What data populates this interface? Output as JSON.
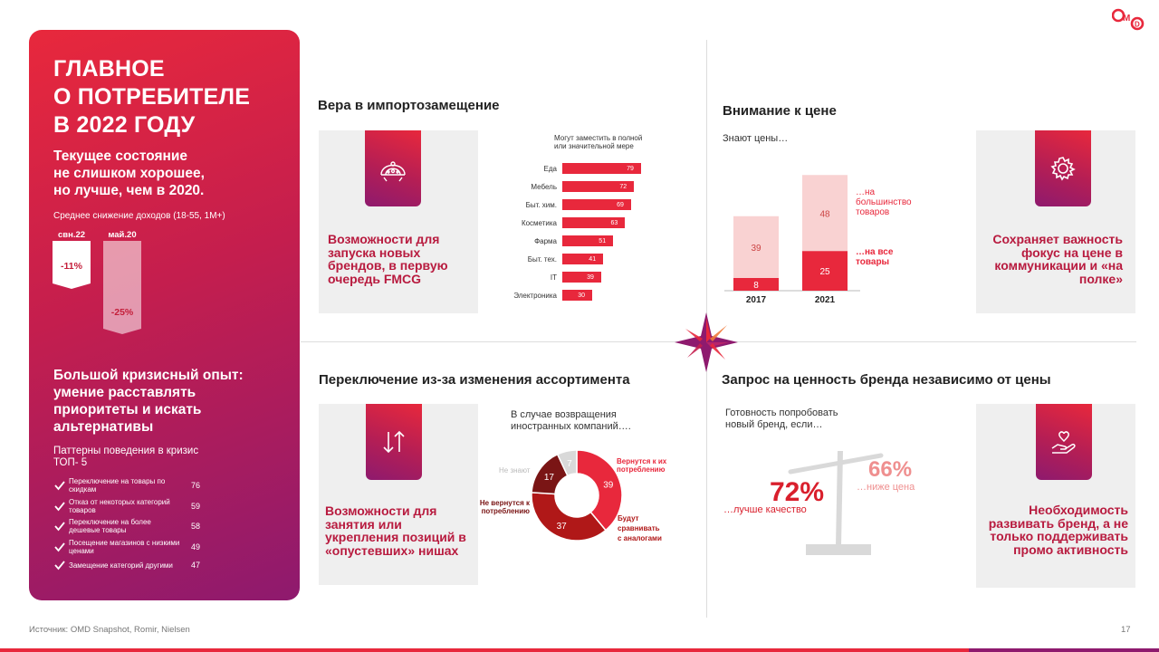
{
  "brand": "OMD",
  "left": {
    "title_lines": [
      "ГЛАВНОЕ",
      "О ПОТРЕБИТЕЛЕ",
      "В 2022 ГОДУ"
    ],
    "subtitle_lines": [
      "Текущее состояние",
      "не слишком хорошее,",
      "но лучше, чем в 2020."
    ],
    "income_caption": "Среднее снижение доходов (18-55, 1М+)",
    "income_bars": [
      {
        "label": "свн.22",
        "value": "-11%"
      },
      {
        "label": "май.20",
        "value": "-25%"
      }
    ],
    "crisis_lines": [
      "Большой кризисный опыт:",
      "умение расставлять",
      "приоритеты и искать",
      "альтернативы"
    ],
    "patterns_title_lines": [
      "Паттерны поведения в кризис",
      "ТОП- 5"
    ],
    "patterns": [
      {
        "label": "Переключение на товары по скидкам",
        "value": "76"
      },
      {
        "label": "Отказ от некоторых категорий товаров",
        "value": "59"
      },
      {
        "label": "Переключение на более дешевые товары",
        "value": "58"
      },
      {
        "label": "Посещение магазинов с низкими ценами",
        "value": "49"
      },
      {
        "label": "Замещение категорий другими",
        "value": "47"
      }
    ]
  },
  "q1": {
    "title": "Вера в импортозамещение",
    "card_text": "Возможности для запуска новых брендов, в первую очередь FMCG",
    "chart_caption_lines": [
      "Могут заместить в полной",
      "или значительной мере"
    ]
  },
  "q2": {
    "title": "Внимание к цене",
    "caption": "Знают цены…",
    "label_most_lines": [
      "…на",
      "большинство",
      "товаров"
    ],
    "label_all_lines": [
      "…на все",
      "товары"
    ],
    "card_text": "Сохраняет важность фокус на цене в коммуникации и «на полке»"
  },
  "q3": {
    "title": "Переключение из-за изменения ассортимента",
    "caption_lines": [
      "В случае возвращения",
      "иностранных компаний…."
    ],
    "card_text": "Возможности для занятия или укрепления позиций в «опустевших» нишах",
    "donut_labels": {
      "return": [
        "Вернутся к их",
        "потреблению"
      ],
      "compare": [
        "Будут",
        "сравнивать",
        "с аналогами"
      ],
      "notreturn": [
        "Не вернутся к",
        "потреблению"
      ],
      "unknown": "Не знают"
    }
  },
  "q4": {
    "title": "Запрос на ценность бренда независимо от цены",
    "caption_lines": [
      "Готовность попробовать",
      "новый бренд, если…"
    ],
    "left_value": "72%",
    "left_label": "…лучше качество",
    "right_value": "66%",
    "right_label": "…ниже цена",
    "card_text": "Необходимость развивать бренд, а не только поддерживать промо активность"
  },
  "footer": "Источник: OMD Snapshot, Romir, Nielsen",
  "page": "17",
  "chart_data": [
    {
      "type": "bar",
      "title": "Могут заместить в полной или значительной мере",
      "orientation": "horizontal",
      "categories": [
        "Еда",
        "Мебель",
        "Быт. хим.",
        "Косметика",
        "Фарма",
        "Быт. тех.",
        "IT",
        "Электроника"
      ],
      "values": [
        79,
        72,
        69,
        63,
        51,
        41,
        39,
        30
      ]
    },
    {
      "type": "bar",
      "title": "Знают цены…",
      "stacked": true,
      "categories": [
        "2017",
        "2021"
      ],
      "series": [
        {
          "name": "…на все товары",
          "values": [
            8,
            25
          ]
        },
        {
          "name": "…на большинство товаров",
          "values": [
            39,
            48
          ]
        }
      ]
    },
    {
      "type": "pie",
      "title": "В случае возвращения иностранных компаний….",
      "donut": true,
      "categories": [
        "Вернутся к их потреблению",
        "Будут сравнивать с аналогами",
        "Не вернутся к потреблению",
        "Не знают"
      ],
      "values": [
        39,
        37,
        17,
        7
      ]
    }
  ],
  "colors": {
    "red": "#e8283c",
    "purple": "#8e1a6e",
    "pink_light": "#f9d2d2",
    "dark_red": "#9c1c1c"
  }
}
